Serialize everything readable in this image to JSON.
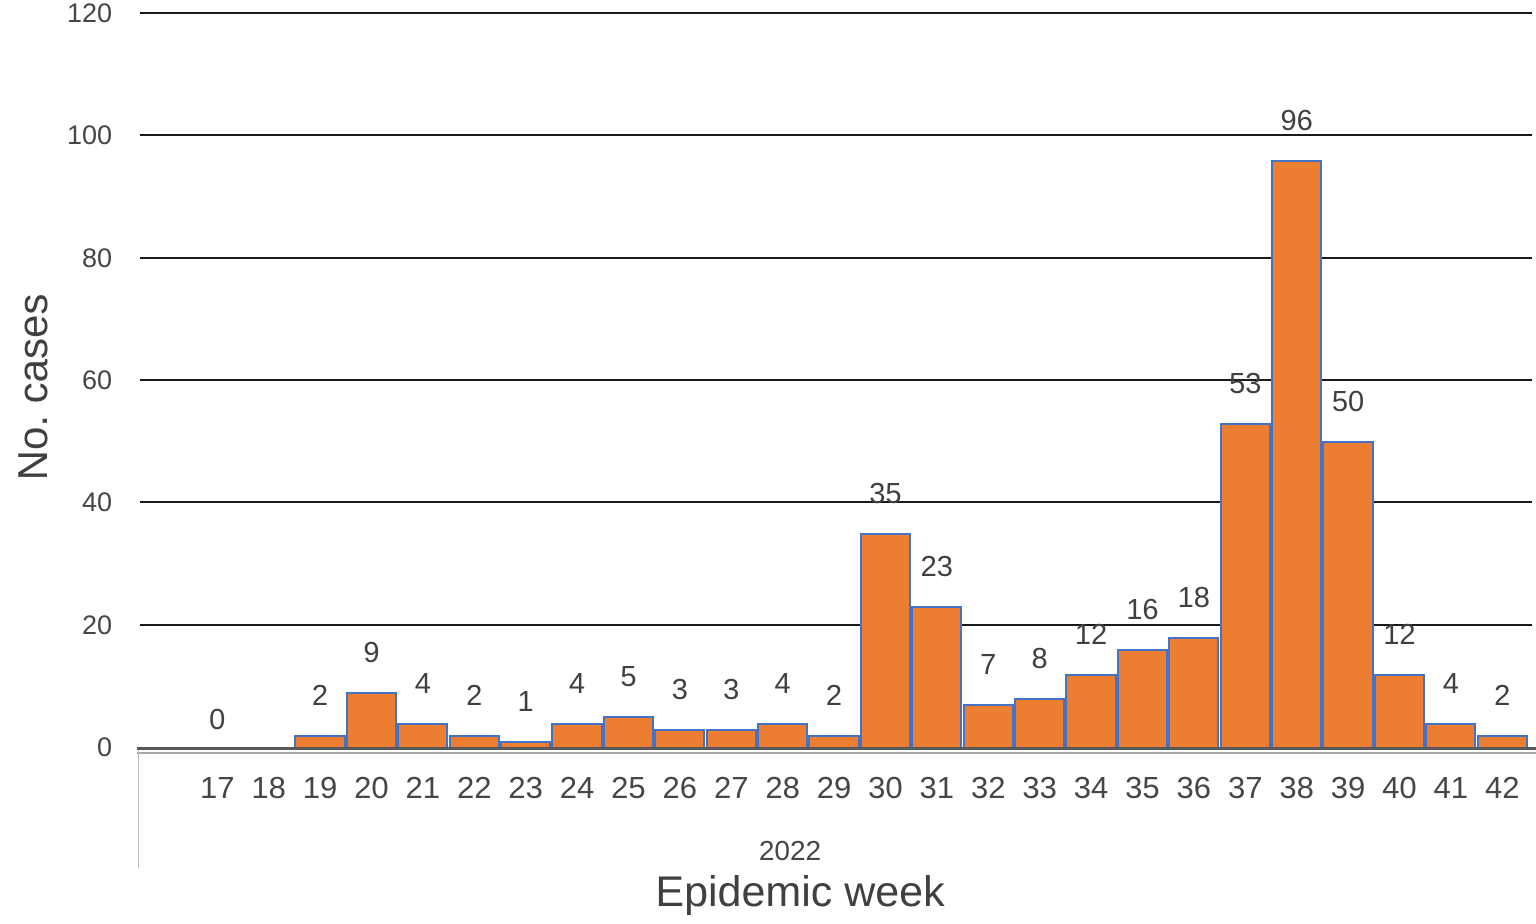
{
  "chart_data": {
    "type": "bar",
    "title": "",
    "xlabel": "Epidemic week",
    "ylabel": "No. cases",
    "year_group_label": "2022",
    "categories": [
      "17",
      "18",
      "19",
      "20",
      "21",
      "22",
      "23",
      "24",
      "25",
      "26",
      "27",
      "28",
      "29",
      "30",
      "31",
      "32",
      "33",
      "34",
      "35",
      "36",
      "37",
      "38",
      "39",
      "40",
      "41",
      "42"
    ],
    "values": [
      0,
      0,
      2,
      9,
      4,
      2,
      1,
      4,
      5,
      3,
      3,
      4,
      2,
      35,
      23,
      7,
      8,
      12,
      16,
      18,
      53,
      96,
      50,
      12,
      4,
      2
    ],
    "bar_labels": [
      "0",
      "",
      "2",
      "9",
      "4",
      "2",
      "1",
      "4",
      "5",
      "3",
      "3",
      "4",
      "2",
      "35",
      "23",
      "7",
      "8",
      "12",
      "16",
      "18",
      "53",
      "96",
      "50",
      "12",
      "4",
      "2"
    ],
    "ylim": [
      0,
      120
    ],
    "yticks": [
      0,
      20,
      40,
      60,
      80,
      100,
      120
    ],
    "grid": "horizontal",
    "legend": "none",
    "colors": {
      "bar_fill": "#ED7D31",
      "bar_border": "#4472C4",
      "gridline": "#1a1a1a",
      "axis_line": "#595959",
      "axis_line_secondary": "#a6a6a6",
      "axis_divider": "#bfbfbf",
      "text": "#404040"
    }
  }
}
